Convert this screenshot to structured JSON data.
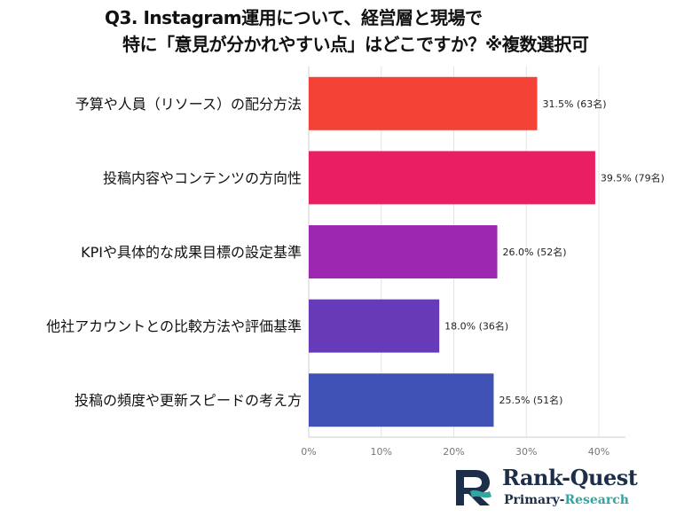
{
  "title": {
    "line1": "Q3. Instagram運用について、経営層と現場で",
    "line2": "特に「意見が分かれやすい点」はどこですか？※複数選択可"
  },
  "chart_data": {
    "type": "bar",
    "orientation": "horizontal",
    "categories": [
      "予算や人員（リソース）の配分方法",
      "投稿内容やコンテンツの方向性",
      "KPIや具体的な成果目標の設定基準",
      "他社アカウントとの比較方法や評価基準",
      "投稿の頻度や更新スピードの考え方"
    ],
    "values": [
      31.5,
      39.5,
      26.0,
      18.0,
      25.5
    ],
    "value_labels": [
      "31.5% (63名)",
      "39.5% (79名)",
      "26.0% (52名)",
      "18.0% (36名)",
      "25.5% (51名)"
    ],
    "colors": [
      "#f44336",
      "#e91e63",
      "#9c27b0",
      "#673ab7",
      "#3f51b5"
    ],
    "xlim": [
      0,
      40
    ],
    "xticks": [
      "0%",
      "10%",
      "20%",
      "30%",
      "40%"
    ],
    "grid": true,
    "xlabel": "",
    "ylabel": ""
  },
  "logo": {
    "name": "Rank-Quest",
    "sub_part1": "Primary-",
    "sub_part2": "Research",
    "colors": {
      "navy": "#1c2e4a",
      "teal": "#2fa6a0"
    }
  }
}
